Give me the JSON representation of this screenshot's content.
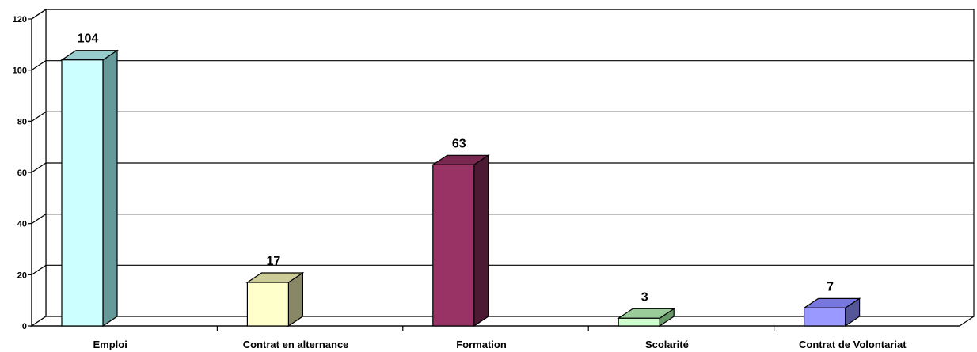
{
  "chart_data": {
    "type": "bar",
    "style": "3d-column",
    "categories": [
      "Emploi",
      "Contrat en alternance",
      "Formation",
      "Scolarité",
      "Contrat de Volontariat"
    ],
    "values": [
      104,
      17,
      63,
      3,
      7
    ],
    "data_labels": [
      "104",
      "17",
      "63",
      "3",
      "7"
    ],
    "ylim": [
      0,
      120
    ],
    "yticks": [
      0,
      20,
      40,
      60,
      80,
      100,
      120
    ],
    "grid": true,
    "legend": "none",
    "colors": [
      {
        "front": "#ccffff",
        "top": "#99cccc",
        "side": "#669999"
      },
      {
        "front": "#ffffcc",
        "top": "#cccc99",
        "side": "#888866"
      },
      {
        "front": "#993366",
        "top": "#7a2850",
        "side": "#4d1a33"
      },
      {
        "front": "#ccffcc",
        "top": "#99cc99",
        "side": "#669966"
      },
      {
        "front": "#9999ff",
        "top": "#7777dd",
        "side": "#555599"
      }
    ]
  }
}
